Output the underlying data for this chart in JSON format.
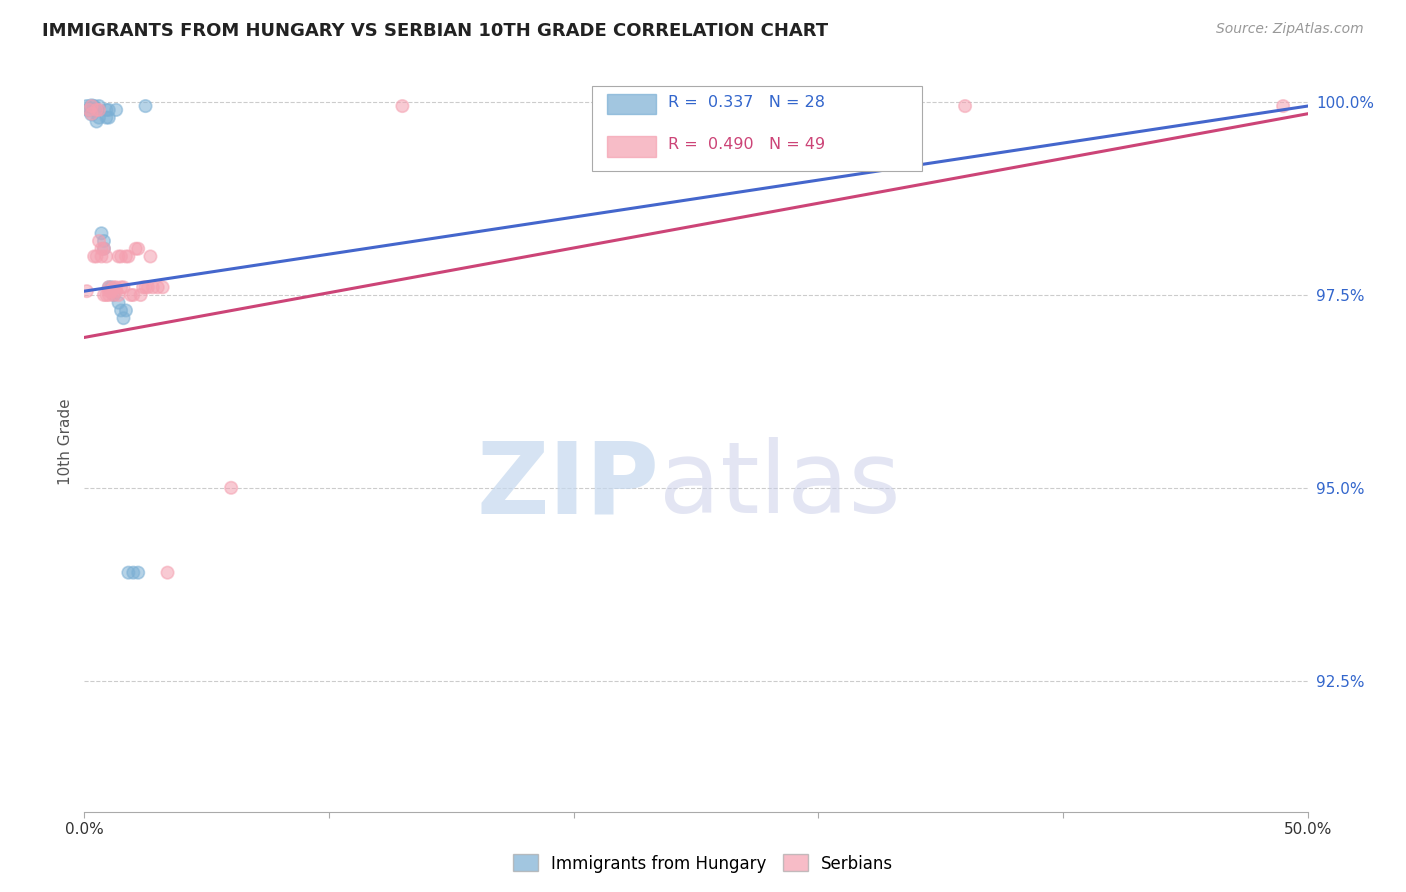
{
  "title": "IMMIGRANTS FROM HUNGARY VS SERBIAN 10TH GRADE CORRELATION CHART",
  "source": "Source: ZipAtlas.com",
  "ylabel": "10th Grade",
  "ylabel_ticks": [
    "92.5%",
    "95.0%",
    "97.5%",
    "100.0%"
  ],
  "ylabel_vals": [
    0.925,
    0.95,
    0.975,
    1.0
  ],
  "xlim": [
    0.0,
    0.5
  ],
  "ylim": [
    0.908,
    1.004
  ],
  "blue_color": "#7bafd4",
  "pink_color": "#f4a0b0",
  "blue_line_color": "#4466cc",
  "pink_line_color": "#cc4477",
  "blue_R": 0.337,
  "blue_N": 28,
  "pink_R": 0.49,
  "pink_N": 49,
  "blue_line_x0": 0.0,
  "blue_line_y0": 0.9755,
  "blue_line_x1": 0.5,
  "blue_line_y1": 0.9995,
  "pink_line_x0": 0.0,
  "pink_line_y0": 0.9695,
  "pink_line_x1": 0.5,
  "pink_line_y1": 0.9985,
  "hungary_x": [
    0.001,
    0.002,
    0.003,
    0.003,
    0.004,
    0.005,
    0.005,
    0.006,
    0.006,
    0.007,
    0.008,
    0.008,
    0.009,
    0.009,
    0.01,
    0.01,
    0.01,
    0.011,
    0.012,
    0.013,
    0.014,
    0.015,
    0.016,
    0.017,
    0.018,
    0.02,
    0.022,
    0.025
  ],
  "hungary_y": [
    0.9995,
    0.999,
    0.9995,
    0.9985,
    0.9995,
    0.999,
    0.9975,
    0.9995,
    0.998,
    0.983,
    0.982,
    0.981,
    0.999,
    0.998,
    0.999,
    0.998,
    0.976,
    0.976,
    0.975,
    0.999,
    0.974,
    0.973,
    0.972,
    0.973,
    0.939,
    0.939,
    0.939,
    0.9995
  ],
  "hungary_sizes": [
    80,
    100,
    100,
    100,
    80,
    80,
    80,
    80,
    80,
    80,
    80,
    80,
    80,
    80,
    80,
    80,
    80,
    80,
    80,
    80,
    80,
    80,
    80,
    80,
    80,
    80,
    80,
    80
  ],
  "serbian_x": [
    0.001,
    0.002,
    0.003,
    0.003,
    0.004,
    0.005,
    0.005,
    0.006,
    0.006,
    0.007,
    0.007,
    0.008,
    0.008,
    0.009,
    0.009,
    0.01,
    0.01,
    0.01,
    0.011,
    0.011,
    0.012,
    0.012,
    0.013,
    0.013,
    0.014,
    0.014,
    0.015,
    0.015,
    0.016,
    0.017,
    0.018,
    0.019,
    0.02,
    0.021,
    0.022,
    0.023,
    0.024,
    0.025,
    0.026,
    0.027,
    0.028,
    0.03,
    0.032,
    0.034,
    0.06,
    0.13,
    0.25,
    0.36,
    0.49
  ],
  "serbian_y": [
    0.9755,
    0.999,
    0.9995,
    0.9985,
    0.98,
    0.999,
    0.98,
    0.982,
    0.999,
    0.981,
    0.98,
    0.981,
    0.975,
    0.975,
    0.98,
    0.9755,
    0.976,
    0.975,
    0.9755,
    0.9755,
    0.976,
    0.975,
    0.976,
    0.9755,
    0.975,
    0.98,
    0.976,
    0.98,
    0.976,
    0.98,
    0.98,
    0.975,
    0.975,
    0.981,
    0.981,
    0.975,
    0.976,
    0.976,
    0.976,
    0.98,
    0.976,
    0.976,
    0.976,
    0.939,
    0.95,
    0.9995,
    0.9995,
    0.9995,
    0.9995
  ],
  "serbian_sizes": [
    80,
    80,
    80,
    80,
    80,
    80,
    80,
    80,
    80,
    80,
    80,
    80,
    80,
    80,
    80,
    80,
    80,
    80,
    80,
    80,
    80,
    80,
    80,
    80,
    80,
    80,
    80,
    80,
    80,
    80,
    80,
    80,
    80,
    80,
    80,
    80,
    80,
    80,
    80,
    80,
    80,
    80,
    80,
    80,
    80,
    80,
    250,
    80,
    80
  ]
}
